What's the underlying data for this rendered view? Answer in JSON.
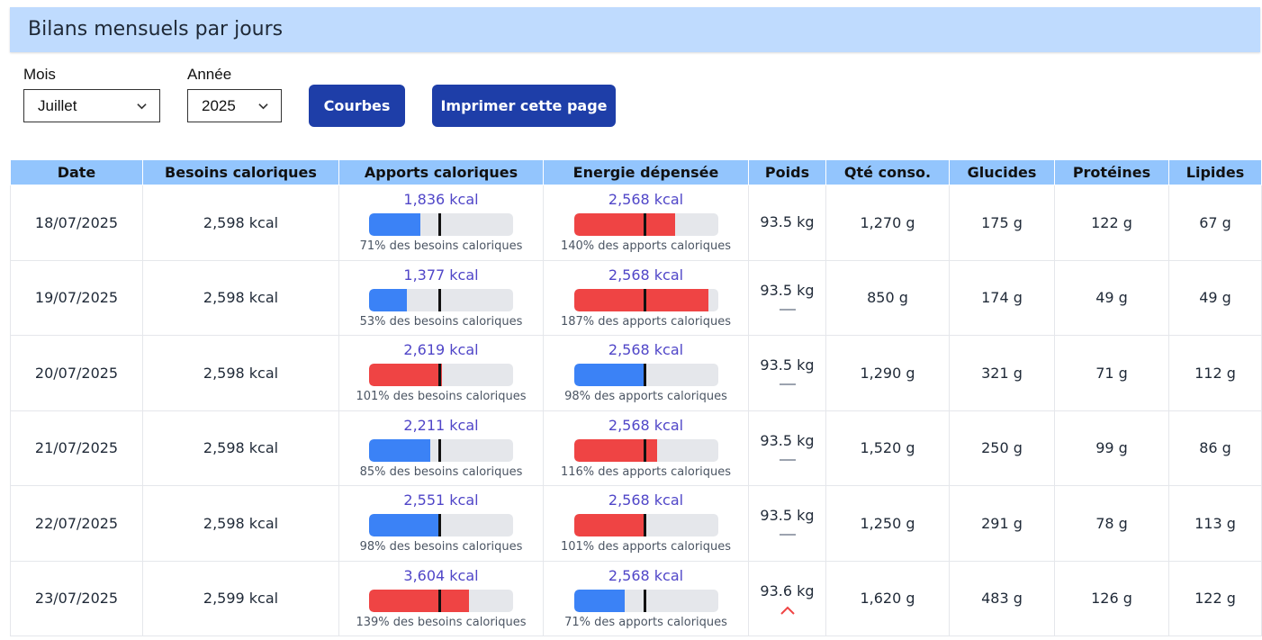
{
  "page_title": "Bilans mensuels par jours",
  "filters": {
    "month_label": "Mois",
    "month_value": "Juillet",
    "year_label": "Année",
    "year_value": "2025"
  },
  "buttons": {
    "curves": "Courbes",
    "print": "Imprimer cette page"
  },
  "colors": {
    "below": "#3b82f6",
    "above": "#ef4444",
    "trend_flat": "#9ca3af",
    "trend_up": "#ef4444"
  },
  "columns": [
    "Date",
    "Besoins caloriques",
    "Apports caloriques",
    "Energie dépensée",
    "Poids",
    "Qté conso.",
    "Glucides",
    "Protéines",
    "Lipides"
  ],
  "rows": [
    {
      "date": "18/07/2025",
      "besoins": "2,598 kcal",
      "apports": "1,836 kcal",
      "apports_pct": 71,
      "apports_note": "71% des besoins caloriques",
      "energie": "2,568 kcal",
      "energie_pct": 140,
      "energie_note": "140% des apports caloriques",
      "poids": "93.5 kg",
      "trend": "none",
      "qte": "1,270 g",
      "glucides": "175 g",
      "proteines": "122 g",
      "lipides": "67 g"
    },
    {
      "date": "19/07/2025",
      "besoins": "2,598 kcal",
      "apports": "1,377 kcal",
      "apports_pct": 53,
      "apports_note": "53% des besoins caloriques",
      "energie": "2,568 kcal",
      "energie_pct": 187,
      "energie_note": "187% des apports caloriques",
      "poids": "93.5 kg",
      "trend": "flat",
      "qte": "850 g",
      "glucides": "174 g",
      "proteines": "49 g",
      "lipides": "49 g"
    },
    {
      "date": "20/07/2025",
      "besoins": "2,598 kcal",
      "apports": "2,619 kcal",
      "apports_pct": 101,
      "apports_note": "101% des besoins caloriques",
      "energie": "2,568 kcal",
      "energie_pct": 98,
      "energie_note": "98% des apports caloriques",
      "poids": "93.5 kg",
      "trend": "flat",
      "qte": "1,290 g",
      "glucides": "321 g",
      "proteines": "71 g",
      "lipides": "112 g"
    },
    {
      "date": "21/07/2025",
      "besoins": "2,598 kcal",
      "apports": "2,211 kcal",
      "apports_pct": 85,
      "apports_note": "85% des besoins caloriques",
      "energie": "2,568 kcal",
      "energie_pct": 116,
      "energie_note": "116% des apports caloriques",
      "poids": "93.5 kg",
      "trend": "flat",
      "qte": "1,520 g",
      "glucides": "250 g",
      "proteines": "99 g",
      "lipides": "86 g"
    },
    {
      "date": "22/07/2025",
      "besoins": "2,598 kcal",
      "apports": "2,551 kcal",
      "apports_pct": 98,
      "apports_note": "98% des besoins caloriques",
      "energie": "2,568 kcal",
      "energie_pct": 101,
      "energie_note": "101% des apports caloriques",
      "poids": "93.5 kg",
      "trend": "flat",
      "qte": "1,250 g",
      "glucides": "291 g",
      "proteines": "78 g",
      "lipides": "113 g"
    },
    {
      "date": "23/07/2025",
      "besoins": "2,599 kcal",
      "apports": "3,604 kcal",
      "apports_pct": 139,
      "apports_note": "139% des besoins caloriques",
      "energie": "2,568 kcal",
      "energie_pct": 71,
      "energie_note": "71% des apports caloriques",
      "poids": "93.6 kg",
      "trend": "up",
      "qte": "1,620 g",
      "glucides": "483 g",
      "proteines": "126 g",
      "lipides": "122 g"
    }
  ]
}
